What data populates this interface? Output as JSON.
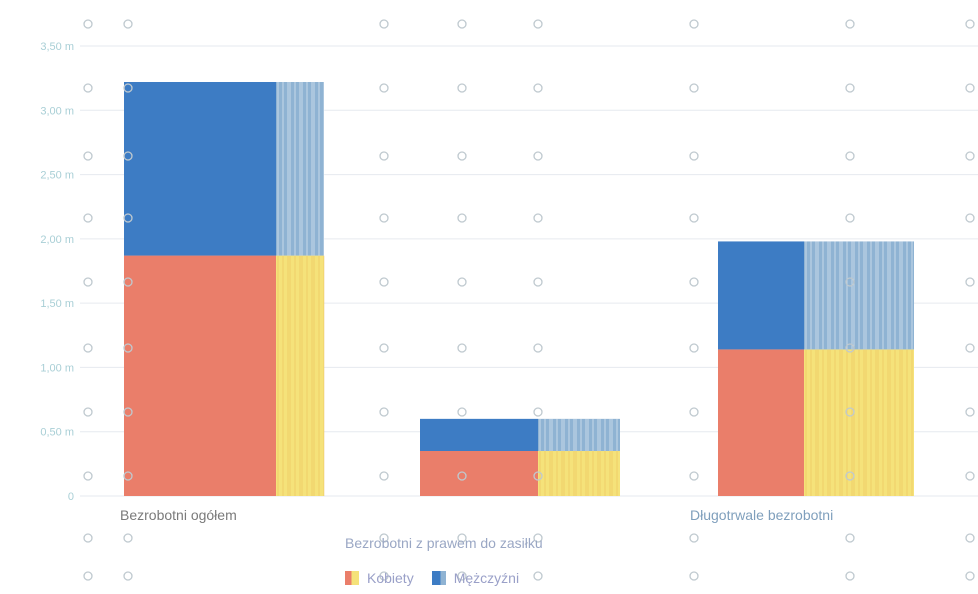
{
  "chart_data": {
    "type": "bar",
    "stacked": true,
    "categories": [
      "Bezrobotni ogółem",
      "Bezrobotni z prawem do zasiłku",
      "Długotrwale bezrobotni"
    ],
    "series": [
      {
        "name": "Kobiety",
        "values": [
          1.87,
          0.35,
          1.14
        ],
        "color": "#ea7e6a"
      },
      {
        "name": "Mężczyźni",
        "values": [
          1.35,
          0.25,
          0.84
        ],
        "color": "#3d7cc4"
      }
    ],
    "ylim": [
      0,
      3.5
    ],
    "yticks": [
      "0",
      "0,50 m",
      "1,00 m",
      "1,50 m",
      "2,00 m",
      "2,50 m",
      "3,00 m",
      "3,50 m"
    ],
    "grid": true,
    "legend": "bottom",
    "accent_colors": {
      "female_bar": "#ea7e6a",
      "female_stripe": "#f5e27a",
      "male_bar": "#3d7cc4",
      "male_stripe": "#8fb3d3"
    }
  }
}
